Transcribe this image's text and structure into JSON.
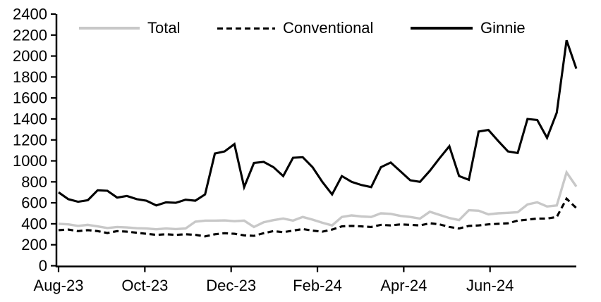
{
  "chart_data": {
    "type": "line",
    "title": "",
    "x_axis": {
      "tick_labels": [
        "Aug-23",
        "Oct-23",
        "Dec-23",
        "Feb-24",
        "Apr-24",
        "Jun-24"
      ],
      "tick_month_offsets": [
        0,
        2,
        4,
        6,
        8,
        10
      ]
    },
    "y_axis": {
      "min": 0,
      "max": 2400,
      "step": 200,
      "tick_labels": [
        "0",
        "200",
        "400",
        "600",
        "800",
        "1000",
        "1200",
        "1400",
        "1600",
        "1800",
        "2000",
        "2200",
        "2400"
      ]
    },
    "legend_position": "top-inside",
    "grid": false,
    "series": [
      {
        "name": "Total",
        "color": "#c8c8c8",
        "dash": "solid",
        "values": [
          400,
          395,
          380,
          390,
          375,
          360,
          370,
          365,
          358,
          355,
          348,
          355,
          350,
          355,
          420,
          430,
          430,
          432,
          425,
          430,
          370,
          415,
          435,
          450,
          430,
          465,
          440,
          410,
          385,
          465,
          480,
          470,
          465,
          500,
          495,
          475,
          465,
          450,
          515,
          485,
          455,
          435,
          530,
          525,
          490,
          500,
          505,
          510,
          585,
          605,
          565,
          575,
          890,
          755
        ]
      },
      {
        "name": "Conventional",
        "color": "#000000",
        "dash": "dashed",
        "values": [
          340,
          345,
          330,
          340,
          330,
          312,
          330,
          325,
          315,
          305,
          295,
          300,
          295,
          300,
          295,
          280,
          300,
          310,
          305,
          290,
          285,
          310,
          330,
          320,
          335,
          350,
          335,
          325,
          345,
          375,
          380,
          375,
          370,
          390,
          385,
          395,
          390,
          385,
          405,
          395,
          370,
          355,
          380,
          385,
          395,
          400,
          405,
          430,
          440,
          450,
          450,
          465,
          640,
          550
        ]
      },
      {
        "name": "Ginnie",
        "color": "#000000",
        "dash": "solid",
        "values": [
          700,
          635,
          610,
          625,
          720,
          715,
          650,
          665,
          635,
          620,
          575,
          605,
          600,
          630,
          620,
          680,
          1070,
          1090,
          1160,
          750,
          980,
          990,
          940,
          855,
          1030,
          1035,
          940,
          800,
          680,
          855,
          800,
          770,
          750,
          940,
          985,
          900,
          815,
          800,
          905,
          1025,
          1140,
          855,
          820,
          1280,
          1295,
          1190,
          1090,
          1075,
          1400,
          1390,
          1220,
          1460,
          2150,
          1880
        ]
      }
    ]
  }
}
